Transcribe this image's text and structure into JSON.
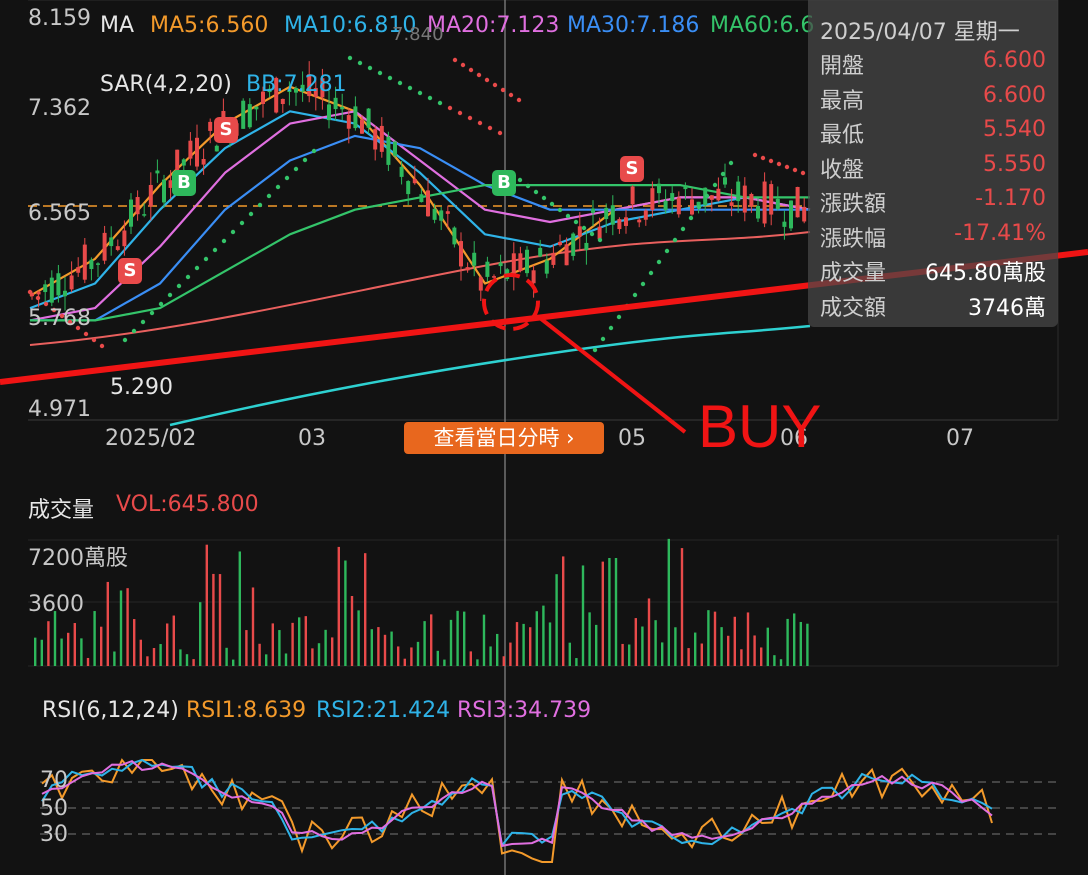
{
  "colors": {
    "bg": "#121212",
    "ma5": "#f39a2b",
    "ma10": "#2fb3e8",
    "ma20": "#e06fe0",
    "ma30": "#3a8ef5",
    "ma60": "#34c46a",
    "ma120": "#e9605e",
    "ma250": "#2ed1d1",
    "up": "#e84a4a",
    "down": "#2eb85c",
    "annot": "#f01414"
  },
  "legend": {
    "ma_prefix": "MA",
    "ma5": "MA5:6.560",
    "ma10": "MA10:6.810",
    "ma20": "MA20:7.123",
    "ma30": "MA30:7.186",
    "ma60": "MA60:6.6",
    "sar": "SAR(4,2,20)",
    "bb": "BB:7.281",
    "bb_fragment": "7.840"
  },
  "price_axis": {
    "ticks": [
      "8.159",
      "7.362",
      "6.565",
      "5.768",
      "4.971"
    ],
    "low_marker": "5.290"
  },
  "time_axis": [
    "2025/02",
    "03",
    "05",
    "06",
    "07"
  ],
  "day_button": "查看當日分時 ›",
  "tooltip": {
    "date": "2025/04/07 星期一",
    "rows": [
      {
        "k": "開盤",
        "v": "6.600",
        "color": "#e84a4a"
      },
      {
        "k": "最高",
        "v": "6.600",
        "color": "#e84a4a"
      },
      {
        "k": "最低",
        "v": "5.540",
        "color": "#e84a4a"
      },
      {
        "k": "收盤",
        "v": "5.550",
        "color": "#e84a4a"
      },
      {
        "k": "漲跌額",
        "v": "-1.170",
        "color": "#e84a4a"
      },
      {
        "k": "漲跌幅",
        "v": "-17.41%",
        "color": "#e84a4a"
      },
      {
        "k": "成交量",
        "v": "645.80萬股",
        "color": "#ffffff"
      },
      {
        "k": "成交額",
        "v": "3746萬",
        "color": "#ffffff"
      }
    ]
  },
  "signals": [
    "S",
    "B",
    "S",
    "B",
    "S"
  ],
  "volume": {
    "title": "成交量",
    "vol_label": "VOL:645.800",
    "ticks": [
      "7200萬股",
      "3600"
    ]
  },
  "rsi": {
    "title": "RSI(6,12,24)",
    "rsi1": "RSI1:8.639",
    "rsi2": "RSI2:21.424",
    "rsi3": "RSI3:34.739",
    "levels": [
      "70",
      "50",
      "30"
    ]
  },
  "annotation": {
    "text": "BUY"
  },
  "chart_data": {
    "type": "line",
    "title": "",
    "price_ylim": [
      4.971,
      8.159
    ],
    "series": [
      {
        "name": "MA5",
        "values": [
          5.9,
          6.2,
          6.8,
          7.3,
          7.6,
          7.4,
          6.8,
          6.0,
          6.2,
          6.6,
          6.7,
          6.7,
          6.6
        ]
      },
      {
        "name": "MA10",
        "values": [
          5.8,
          6.0,
          6.6,
          7.1,
          7.4,
          7.3,
          6.9,
          6.4,
          6.3,
          6.5,
          6.6,
          6.7,
          6.6
        ]
      },
      {
        "name": "MA20",
        "values": [
          5.7,
          5.8,
          6.3,
          6.9,
          7.3,
          7.4,
          7.0,
          6.6,
          6.5,
          6.6,
          6.7,
          6.7,
          6.6
        ]
      },
      {
        "name": "MA30",
        "values": [
          5.7,
          5.7,
          6.0,
          6.6,
          7.0,
          7.2,
          7.1,
          6.8,
          6.6,
          6.6,
          6.6,
          6.6,
          6.6
        ]
      },
      {
        "name": "MA60",
        "values": [
          5.7,
          5.7,
          5.8,
          6.1,
          6.4,
          6.6,
          6.7,
          6.8,
          6.8,
          6.8,
          6.8,
          6.7,
          6.7
        ]
      }
    ],
    "rsi_levels": [
      70,
      50,
      30
    ]
  }
}
